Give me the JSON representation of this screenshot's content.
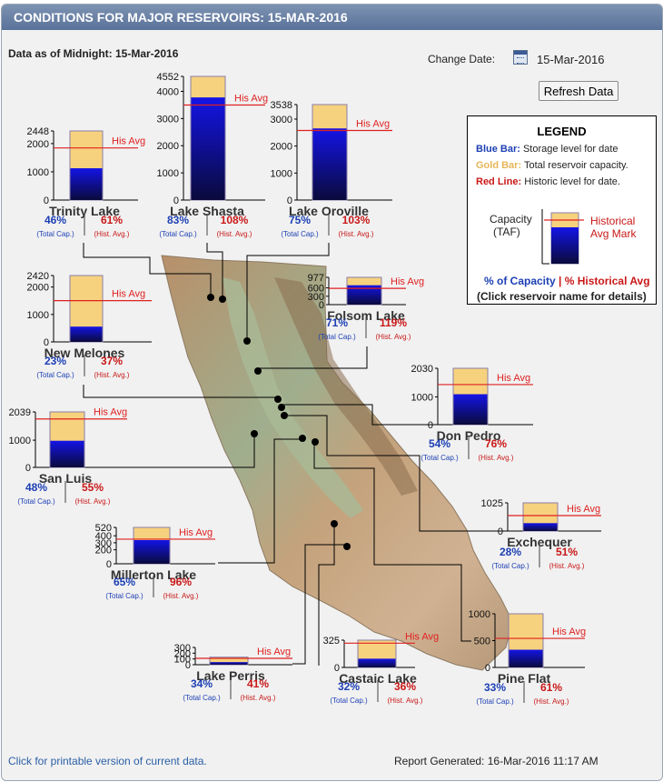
{
  "header": {
    "title": "CONDITIONS FOR MAJOR RESERVOIRS: 15-MAR-2016",
    "data_as_of": "Data as of Midnight: 15-Mar-2016"
  },
  "controls": {
    "change_date_label": "Change Date:",
    "date_value": "15-Mar-2016",
    "refresh_label": "Refresh Data"
  },
  "legend": {
    "title": "LEGEND",
    "blue_key": "Blue Bar:",
    "blue_text": "Storage level for date",
    "gold_key": "Gold Bar:",
    "gold_text": "Total reservoir capacity.",
    "red_key": "Red Line:",
    "red_text": "Historic level for date.",
    "capacity_label_1": "Capacity",
    "capacity_label_2": "(TAF)",
    "hist_mark_1": "Historical",
    "hist_mark_2": "Avg Mark",
    "pct_capacity": "% of Capacity",
    "sep": "|",
    "pct_hist": "% Historical Avg",
    "click_note": "(Click reservoir name for details)"
  },
  "colors": {
    "storage_top": "#1414e6",
    "storage_bottom": "#0a0a3c",
    "capacity": "#f7d27e",
    "historic_line": "#e02020",
    "pct_capacity_text": "#1c3fb4",
    "pct_hist_text": "#c91818"
  },
  "chart_data": {
    "type": "bar",
    "unit": "TAF",
    "his_avg_label": "His Avg",
    "total_cap_label": "(Total Cap.)",
    "hist_avg_label": "(Hist. Avg.)",
    "reservoirs": [
      {
        "name": "Trinity Lake",
        "capacity": 2448,
        "storage": 1126,
        "hist_avg": 1846,
        "pct_capacity": "46%",
        "pct_hist": "61%",
        "ticks": [
          "0",
          "1000",
          "2000",
          "2448"
        ]
      },
      {
        "name": "Lake Shasta",
        "capacity": 4552,
        "storage": 3778,
        "hist_avg": 3498,
        "pct_capacity": "83%",
        "pct_hist": "108%",
        "ticks": [
          "0",
          "1000",
          "2000",
          "3000",
          "4000",
          "4552"
        ]
      },
      {
        "name": "Lake Oroville",
        "capacity": 3538,
        "storage": 2654,
        "hist_avg": 2577,
        "pct_capacity": "75%",
        "pct_hist": "103%",
        "ticks": [
          "0",
          "1000",
          "2000",
          "3000",
          "3538"
        ]
      },
      {
        "name": "New Melones",
        "capacity": 2420,
        "storage": 557,
        "hist_avg": 1505,
        "pct_capacity": "23%",
        "pct_hist": "37%",
        "ticks": [
          "0",
          "1000",
          "2000",
          "2420"
        ]
      },
      {
        "name": "Folsom Lake",
        "capacity": 977,
        "storage": 694,
        "hist_avg": 583,
        "pct_capacity": "71%",
        "pct_hist": "119%",
        "ticks": [
          "0",
          "300",
          "600",
          "977"
        ]
      },
      {
        "name": "Don Pedro",
        "capacity": 2030,
        "storage": 1096,
        "hist_avg": 1442,
        "pct_capacity": "54%",
        "pct_hist": "76%",
        "ticks": [
          "0",
          "1000",
          "2030"
        ]
      },
      {
        "name": "San Luis",
        "capacity": 2039,
        "storage": 979,
        "hist_avg": 1780,
        "pct_capacity": "48%",
        "pct_hist": "55%",
        "ticks": [
          "0",
          "1000",
          "2039"
        ]
      },
      {
        "name": "Exchequer",
        "capacity": 1025,
        "storage": 287,
        "hist_avg": 563,
        "pct_capacity": "28%",
        "pct_hist": "51%",
        "ticks": [
          "0",
          "1025"
        ]
      },
      {
        "name": "Millerton Lake",
        "capacity": 520,
        "storage": 338,
        "hist_avg": 352,
        "pct_capacity": "65%",
        "pct_hist": "96%",
        "ticks": [
          "0",
          "200",
          "300",
          "400",
          "520"
        ]
      },
      {
        "name": "Pine Flat",
        "capacity": 1000,
        "storage": 330,
        "hist_avg": 541,
        "pct_capacity": "33%",
        "pct_hist": "61%",
        "ticks": [
          "0",
          "500",
          "1000"
        ]
      },
      {
        "name": "Lake Perris",
        "capacity": 131,
        "storage": 45,
        "hist_avg": 110,
        "pct_capacity": "34%",
        "pct_hist": "41%",
        "ticks": [
          "0",
          "100",
          "200",
          "300"
        ]
      },
      {
        "name": "Castaic Lake",
        "capacity": 325,
        "storage": 104,
        "hist_avg": 289,
        "pct_capacity": "32%",
        "pct_hist": "36%",
        "ticks": [
          "0",
          "325"
        ]
      }
    ]
  },
  "footer": {
    "printable_link": "Click for printable version of current data.",
    "report_generated": "Report Generated: 16-Mar-2016 11:17 AM"
  }
}
